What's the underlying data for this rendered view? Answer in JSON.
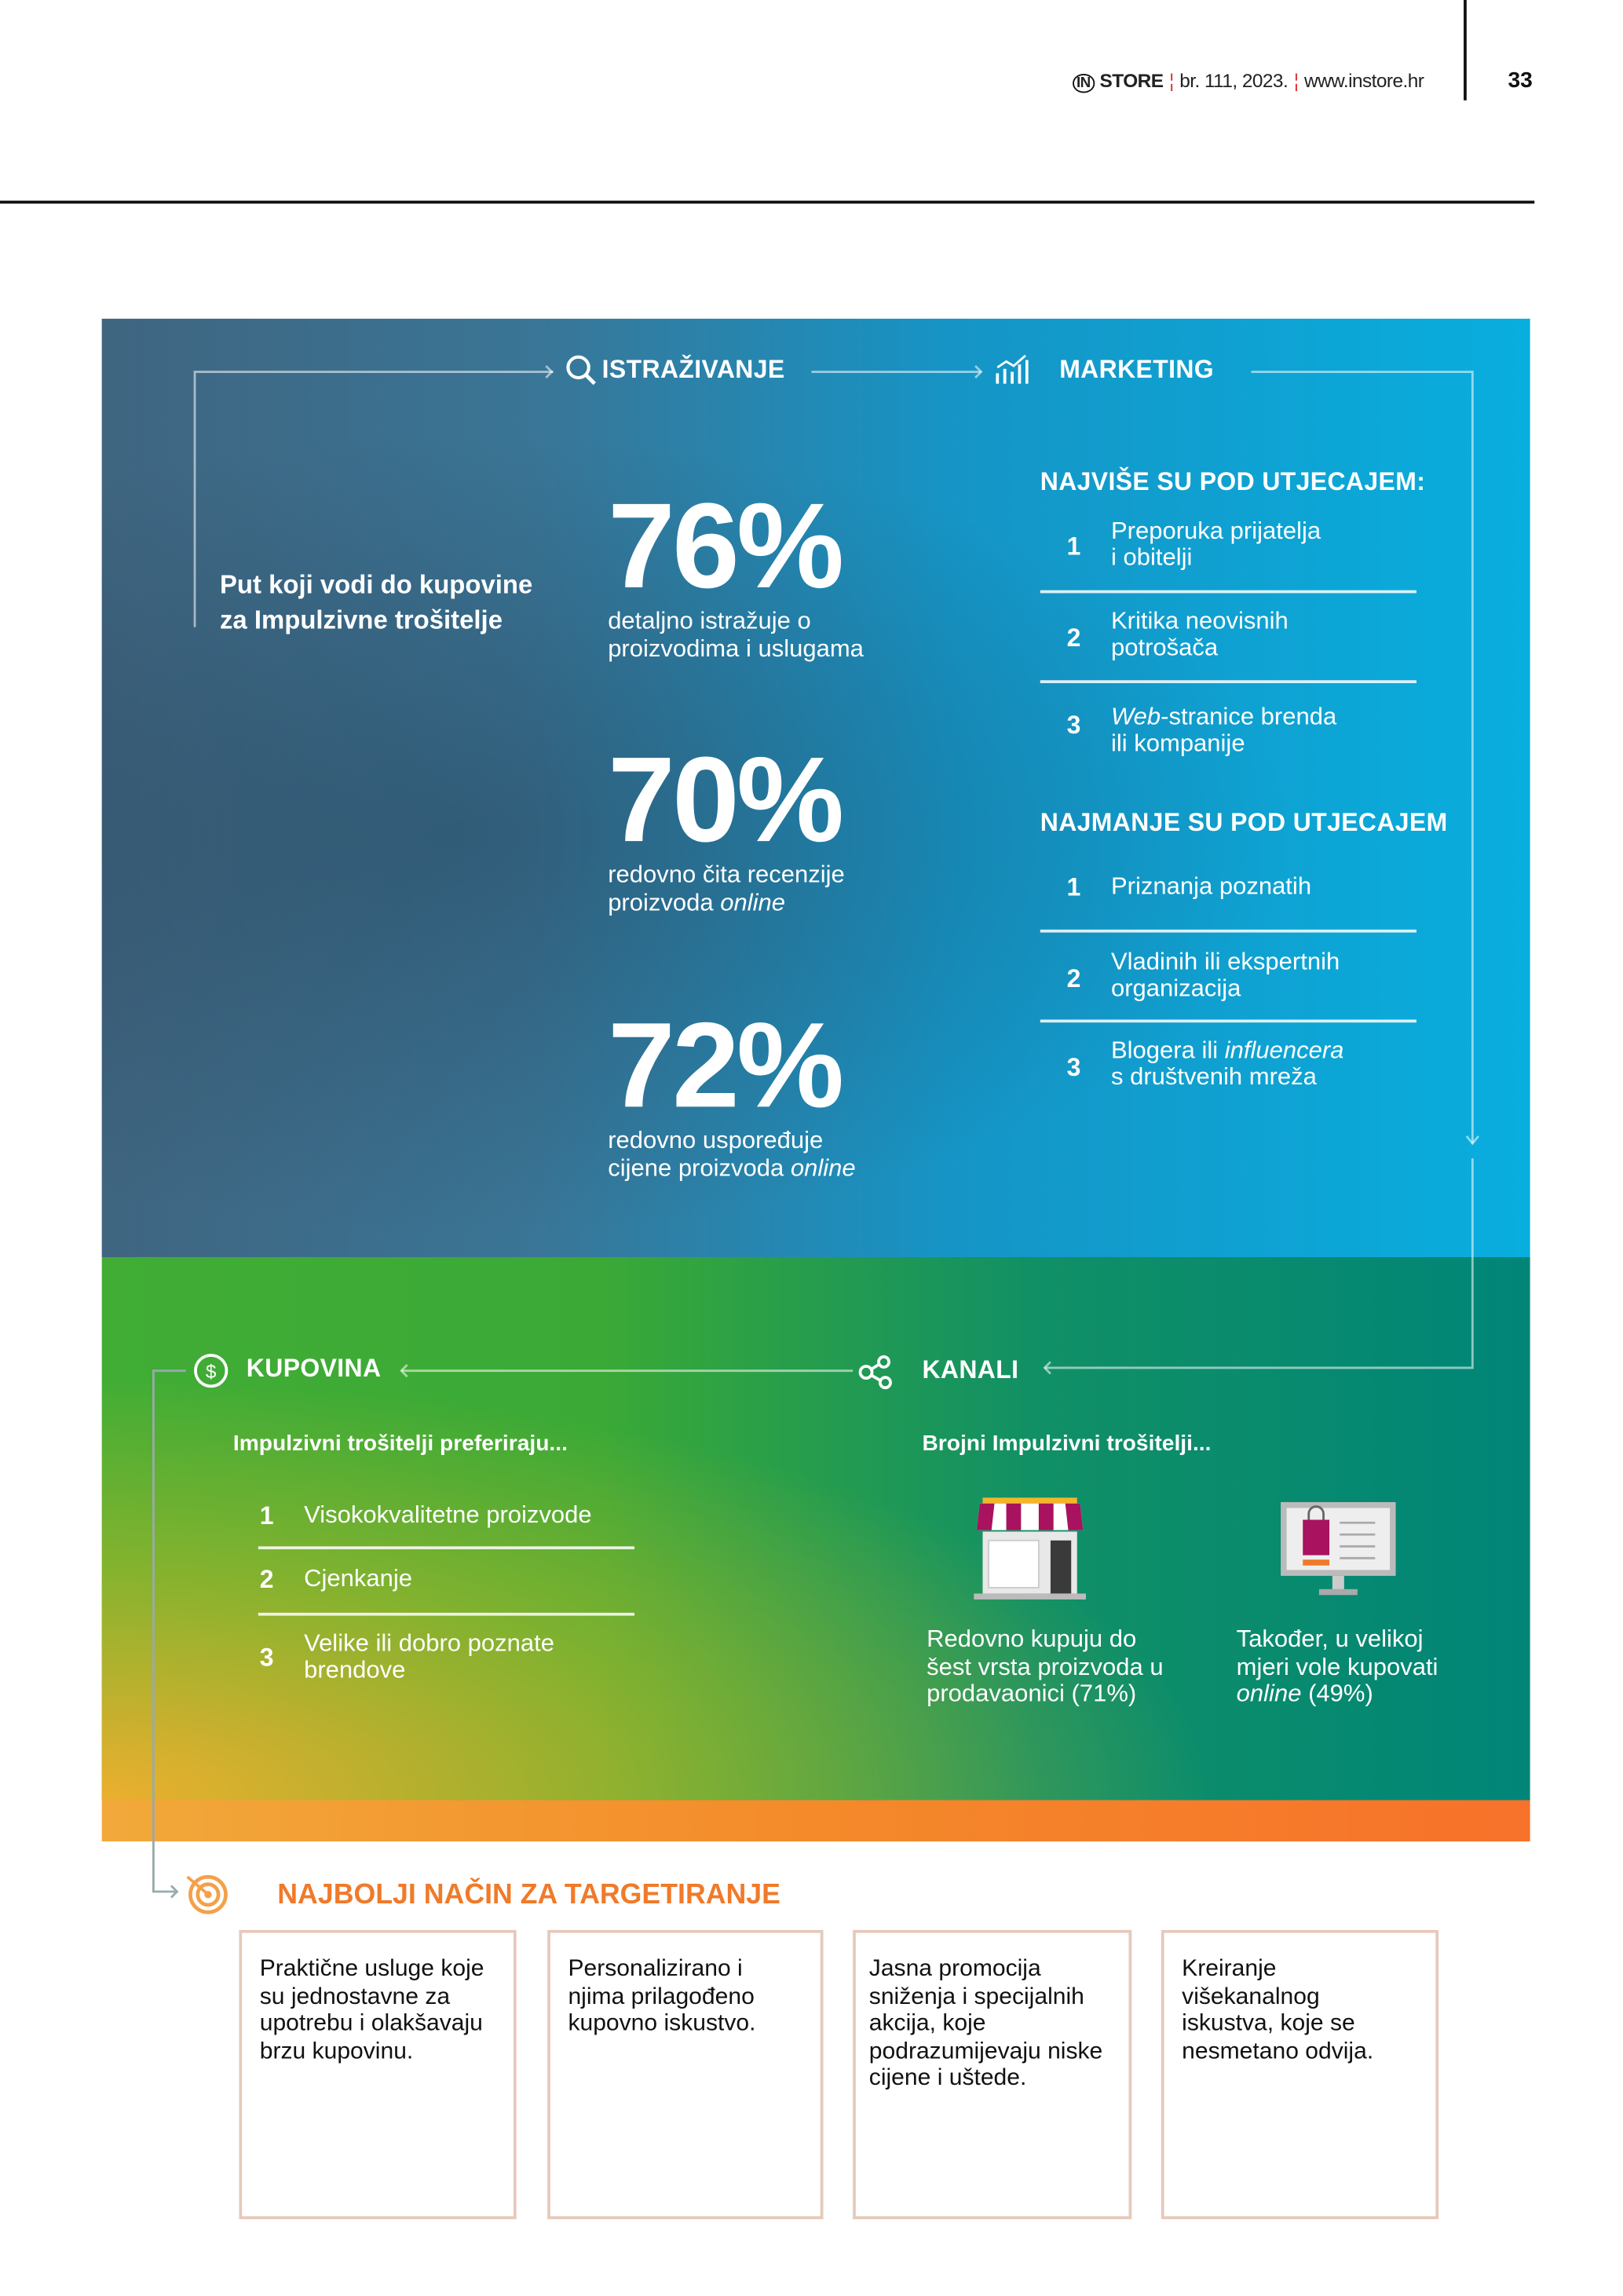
{
  "header": {
    "brand": "STORE",
    "brand_icon": "in-logo-icon",
    "issue": "br. 111, 2023.",
    "website": "www.instore.hr",
    "page_number": "33"
  },
  "intro": {
    "line1": "Put koji vodi do kupovine",
    "line2": "za Impulzivne trošitelje"
  },
  "sections": {
    "research": "ISTRAŽIVANJE",
    "marketing": "MARKETING",
    "purchase": "KUPOVINA",
    "channels": "KANALI",
    "targeting": "NAJBOLJI NAČIN ZA TARGETIRANJE"
  },
  "stats": [
    {
      "value": "76%",
      "line1": "detaljno istražuje o",
      "line2": "proizvodima i uslugama",
      "italic": ""
    },
    {
      "value": "70%",
      "line1": "redovno čita recenzije",
      "line2": "proizvoda ",
      "italic": "online"
    },
    {
      "value": "72%",
      "line1": "redovno uspoređuje",
      "line2": "cijene proizvoda ",
      "italic": "online"
    }
  ],
  "most_influence": {
    "title": "NAJVIŠE SU POD UTJECAJEM:",
    "items": [
      {
        "n": "1",
        "a": "Preporuka prijatelja",
        "b": "i obitelji"
      },
      {
        "n": "2",
        "a": "Kritika neovisnih",
        "b": "potrošača"
      },
      {
        "n": "3",
        "italic": "Web",
        "a": "-stranice brenda",
        "b": "ili kompanije"
      }
    ]
  },
  "least_influence": {
    "title": "NAJMANJE SU POD UTJECAJEM",
    "items": [
      {
        "n": "1",
        "a": "Priznanja poznatih"
      },
      {
        "n": "2",
        "a": "Vladinih ili ekspertnih",
        "b": "organizacija"
      },
      {
        "n": "3",
        "a": "Blogera ili ",
        "italic": "influencera",
        "b": "s društvenih mreža"
      }
    ]
  },
  "purchase": {
    "subtitle": "Impulzivni trošitelji preferiraju...",
    "items": [
      {
        "n": "1",
        "a": "Visokokvalitetne proizvode"
      },
      {
        "n": "2",
        "a": "Cjenkanje"
      },
      {
        "n": "3",
        "a": "Velike ili dobro poznate",
        "b": "brendove"
      }
    ]
  },
  "channels": {
    "subtitle": "Brojni Impulzivni trošitelji...",
    "store": {
      "l1": "Redovno kupuju do",
      "l2": "šest vrsta proizvoda u",
      "l3": "prodavaonici (71%)"
    },
    "online": {
      "l1": "Također, u velikoj",
      "l2": "mjeri vole kupovati",
      "italic": "online",
      "l3": " (49%)"
    }
  },
  "targeting": [
    "Praktične usluge koje su jednostavne za upotrebu i olakšavaju brzu kupovinu.",
    "Personalizirano i njima prilagođeno kupovno iskustvo.",
    "Jasna promocija sniženja i specijalnih akcija, koje podrazumijevaju niske cijene i uštede.",
    "Kreiranje višekanalnog iskustva, koje se nesmetano odvija."
  ],
  "colors": {
    "blue_left": "#3f6580",
    "blue_right": "#08aede",
    "green_left": "#41ad35",
    "green_right": "#008578",
    "orange": "#f48a2a",
    "targeting_title": "#f07a2a",
    "magenta": "#a8125e"
  }
}
